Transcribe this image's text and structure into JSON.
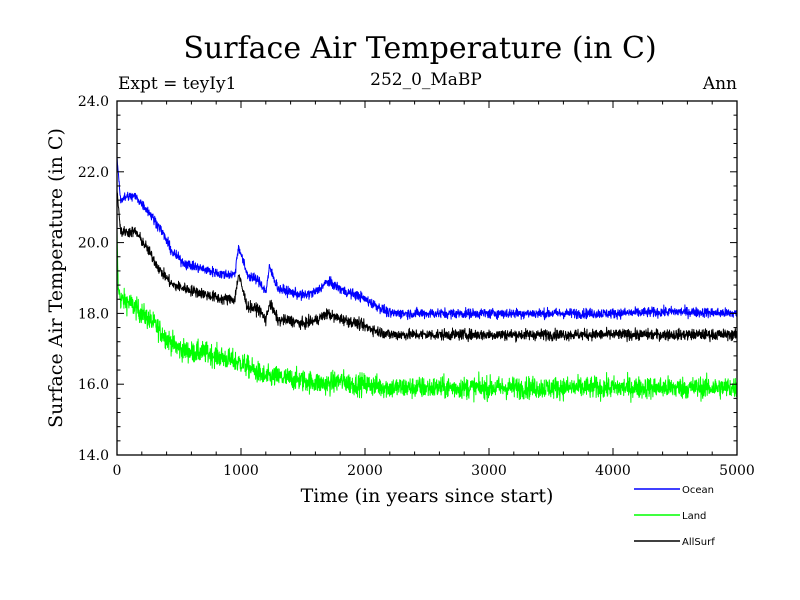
{
  "chart_data": {
    "type": "line",
    "title": "Surface Air Temperature (in C)",
    "subtitle_left": "Expt = teyIy1",
    "subtitle_center": "252_0_MaBP",
    "subtitle_right": "Ann",
    "xlabel": "Time (in years since start)",
    "ylabel": "Surface Air Temperature (in C)",
    "xlim": [
      0,
      5000
    ],
    "ylim": [
      14.0,
      24.0
    ],
    "xticks": [
      0,
      1000,
      2000,
      3000,
      4000,
      5000
    ],
    "xtick_labels": [
      "0",
      "1000",
      "2000",
      "3000",
      "4000",
      "5000"
    ],
    "yticks": [
      14.0,
      16.0,
      18.0,
      20.0,
      22.0,
      24.0
    ],
    "ytick_labels": [
      "14.0",
      "16.0",
      "18.0",
      "20.0",
      "22.0",
      "24.0"
    ],
    "legend_placement": "bottom-right, below plot",
    "series": [
      {
        "name": "Ocean",
        "color": "#0000ff",
        "noise": 0.1,
        "x": [
          0,
          30,
          80,
          150,
          250,
          350,
          450,
          550,
          650,
          750,
          850,
          950,
          980,
          1050,
          1150,
          1200,
          1230,
          1300,
          1400,
          1500,
          1600,
          1700,
          1750,
          1850,
          1950,
          2100,
          2200,
          2300,
          2500,
          3000,
          3500,
          4000,
          4500,
          5000
        ],
        "values": [
          22.4,
          21.2,
          21.3,
          21.3,
          20.9,
          20.4,
          19.7,
          19.4,
          19.3,
          19.2,
          19.1,
          19.1,
          19.9,
          19.1,
          18.9,
          18.6,
          19.3,
          18.7,
          18.6,
          18.5,
          18.6,
          18.9,
          18.8,
          18.6,
          18.5,
          18.2,
          18.0,
          18.0,
          18.0,
          18.0,
          18.0,
          18.0,
          18.05,
          18.0
        ]
      },
      {
        "name": "Land",
        "color": "#00ff00",
        "noise": 0.22,
        "x": [
          0,
          10,
          30,
          100,
          200,
          300,
          400,
          500,
          600,
          700,
          800,
          900,
          1000,
          1100,
          1200,
          1300,
          1500,
          1700,
          1800,
          1900,
          2000,
          2200,
          2500,
          3000,
          3500,
          4000,
          4500,
          5000
        ],
        "values": [
          20.3,
          18.7,
          18.4,
          18.3,
          18.0,
          17.7,
          17.3,
          17.0,
          16.9,
          16.9,
          16.8,
          16.7,
          16.6,
          16.4,
          16.2,
          16.2,
          16.1,
          16.0,
          16.1,
          16.0,
          16.0,
          15.9,
          15.9,
          15.9,
          15.9,
          15.9,
          15.9,
          15.9
        ]
      },
      {
        "name": "AllSurf",
        "color": "#000000",
        "noise": 0.11,
        "x": [
          0,
          30,
          80,
          150,
          250,
          350,
          450,
          550,
          650,
          750,
          850,
          950,
          980,
          1050,
          1150,
          1200,
          1230,
          1300,
          1400,
          1500,
          1600,
          1700,
          1750,
          1850,
          1950,
          2100,
          2200,
          2300,
          2500,
          3000,
          3500,
          4000,
          4500,
          5000
        ],
        "values": [
          21.5,
          20.3,
          20.3,
          20.3,
          19.8,
          19.2,
          18.8,
          18.7,
          18.6,
          18.5,
          18.4,
          18.4,
          19.1,
          18.2,
          18.1,
          17.8,
          18.3,
          17.8,
          17.8,
          17.7,
          17.8,
          18.0,
          17.9,
          17.8,
          17.7,
          17.5,
          17.4,
          17.4,
          17.4,
          17.4,
          17.4,
          17.4,
          17.4,
          17.4
        ]
      }
    ]
  }
}
